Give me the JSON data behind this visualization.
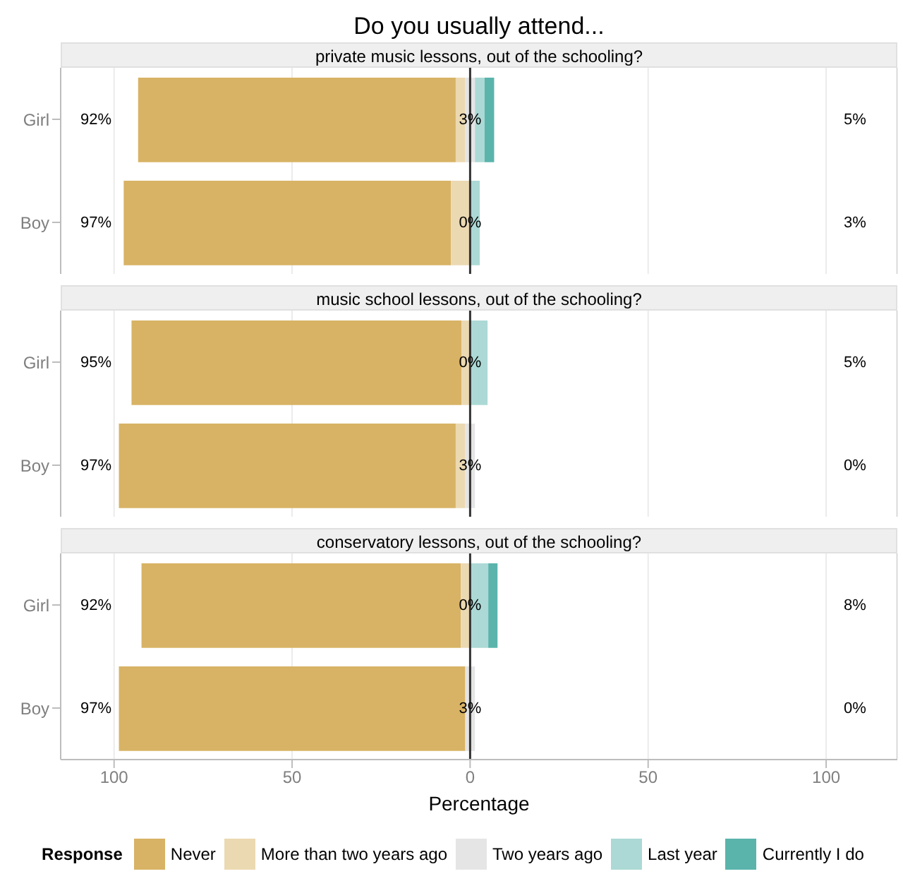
{
  "chart_data": [
    {
      "type": "bar",
      "orientation": "horizontal",
      "title": "Do you usually attend...",
      "subtitle": "private music lessons, out of the schooling?",
      "categories": [
        "Girl",
        "Boy"
      ],
      "series": [
        {
          "color": "#d8b365",
          "values": [
            89.2,
            91.9
          ],
          "base": [
            -93.25,
            -97.3
          ]
        },
        {
          "color": "#ebd9b2",
          "values": [
            2.7,
            5.4
          ],
          "base": [
            -4.05,
            -5.4
          ]
        },
        {
          "color": "#e5e5e5",
          "values": [
            2.7,
            0
          ],
          "base": [
            -1.35,
            null
          ]
        },
        {
          "color": "#acd9d5",
          "values": [
            2.7,
            2.7
          ],
          "base": [
            1.35,
            0
          ]
        },
        {
          "color": "#5ab4ac",
          "values": [
            2.7,
            0
          ],
          "base": [
            4.05,
            null
          ]
        }
      ],
      "totals": [
        [
          "92%",
          "3%",
          "5%"
        ],
        [
          "97%",
          "0%",
          "3%"
        ]
      ],
      "xlim": [
        -115,
        120
      ],
      "xticks": [
        {
          "value": -100,
          "label": null
        },
        {
          "value": -50,
          "label": null
        },
        {
          "value": 0,
          "label": null
        },
        {
          "value": 50,
          "label": null
        },
        {
          "value": 100,
          "label": null
        }
      ],
      "grid": "x",
      "tick_labels": "y",
      "ref_lines": [
        {
          "axis": "x",
          "value": 0,
          "color": "#333333"
        }
      ]
    },
    {
      "type": "bar",
      "orientation": "horizontal",
      "subtitle": "music school lessons, out of the schooling?",
      "categories": [
        "Girl",
        "Boy"
      ],
      "series": [
        {
          "color": "#d8b365",
          "values": [
            92.7,
            94.6
          ],
          "base": [
            -95.1,
            -98.65
          ]
        },
        {
          "color": "#ebd9b2",
          "values": [
            2.4,
            2.7
          ],
          "base": [
            -2.4,
            -4.05
          ]
        },
        {
          "color": "#e5e5e5",
          "values": [
            0,
            2.7
          ],
          "base": [
            null,
            -1.35
          ]
        },
        {
          "color": "#acd9d5",
          "values": [
            4.9,
            0
          ],
          "base": [
            0,
            null
          ]
        },
        {
          "color": "#5ab4ac",
          "values": [
            0,
            0
          ],
          "base": [
            null,
            null
          ]
        }
      ],
      "totals": [
        [
          "95%",
          "0%",
          "5%"
        ],
        [
          "97%",
          "3%",
          "0%"
        ]
      ],
      "xlim": [
        -115,
        120
      ],
      "xticks": [
        {
          "value": -100,
          "label": null
        },
        {
          "value": -50,
          "label": null
        },
        {
          "value": 0,
          "label": null
        },
        {
          "value": 50,
          "label": null
        },
        {
          "value": 100,
          "label": null
        }
      ],
      "grid": "x",
      "tick_labels": "y",
      "ref_lines": [
        {
          "axis": "x",
          "value": 0,
          "color": "#333333"
        }
      ]
    },
    {
      "type": "bar",
      "orientation": "horizontal",
      "subtitle": "conservatory lessons, out of the schooling?",
      "xlabel": "Percentage",
      "legend_title": "Response",
      "legend": "bottom",
      "categories": [
        "Girl",
        "Boy"
      ],
      "series": [
        {
          "name": "Never",
          "color": "#d8b365",
          "values": [
            89.7,
            97.3
          ],
          "base": [
            -92.3,
            -98.65
          ]
        },
        {
          "name": "More than two years ago",
          "color": "#ebd9b2",
          "values": [
            2.6,
            0
          ],
          "base": [
            -2.6,
            null
          ]
        },
        {
          "name": "Two years ago",
          "color": "#e5e5e5",
          "values": [
            0,
            2.7
          ],
          "base": [
            null,
            -1.35
          ]
        },
        {
          "name": "Last year",
          "color": "#acd9d5",
          "values": [
            5.1,
            0
          ],
          "base": [
            0,
            null
          ]
        },
        {
          "name": "Currently I do",
          "color": "#5ab4ac",
          "values": [
            2.6,
            0
          ],
          "base": [
            5.1,
            null
          ]
        }
      ],
      "totals": [
        [
          "92%",
          "0%",
          "8%"
        ],
        [
          "97%",
          "3%",
          "0%"
        ]
      ],
      "xlim": [
        -115,
        120
      ],
      "xticks": [
        {
          "value": -100,
          "label": "100"
        },
        {
          "value": -50,
          "label": "50"
        },
        0,
        50,
        100
      ],
      "grid": "x",
      "ref_lines": [
        {
          "axis": "x",
          "value": 0,
          "color": "#333333"
        }
      ]
    }
  ]
}
